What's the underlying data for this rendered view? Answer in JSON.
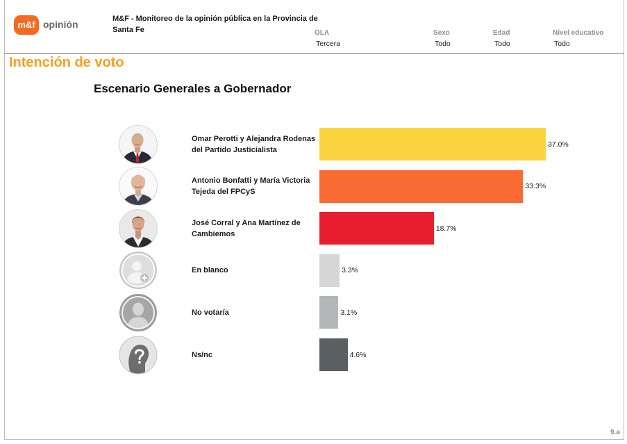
{
  "header": {
    "logo": {
      "mark": "m&f",
      "name": "opinión"
    },
    "title": "M&F - Monitoreo de la opinión pública en la Provincia de Santa Fe",
    "filters": [
      {
        "label": "OLA",
        "value": "Tercera"
      },
      {
        "label": "Sexo",
        "value": "Todo"
      },
      {
        "label": "Edad",
        "value": "Todo"
      },
      {
        "label": "Nivel educativo",
        "value": "Todo"
      }
    ]
  },
  "section_title": "Intención de voto",
  "page_number": "9.a",
  "colors": {
    "brand_orange": "#F36B21",
    "section_title": "#F5A01E"
  },
  "chart_data": {
    "type": "bar",
    "horizontal": true,
    "title": "Escenario Generales a Gobernador",
    "categories": [
      "Omar Perotti y Alejandra Rodenas del Partido Justicialista",
      "Antonio Bonfatti y María Victoria Tejeda del FPCyS",
      "José Corral y Ana Martínez de Cambiemos",
      "En blanco",
      "No votaría",
      "Ns/nc"
    ],
    "values": [
      37.0,
      33.3,
      18.7,
      3.3,
      3.1,
      4.6
    ],
    "value_labels": [
      "37.0%",
      "33.3%",
      "18.7%",
      "3.3%",
      "3.1%",
      "4.6%"
    ],
    "colors": [
      "#F9D43E",
      "#FA6B32",
      "#E81F2E",
      "#D6D6D6",
      "#B4B7B7",
      "#5A5F64"
    ],
    "icons": [
      "portrait-omar-perotti-icon",
      "portrait-antonio-bonfatti-icon",
      "portrait-jose-corral-icon",
      "blank-vote-person-icon",
      "no-vote-person-icon",
      "unknown-person-question-icon"
    ],
    "grid": false,
    "legend": false
  }
}
